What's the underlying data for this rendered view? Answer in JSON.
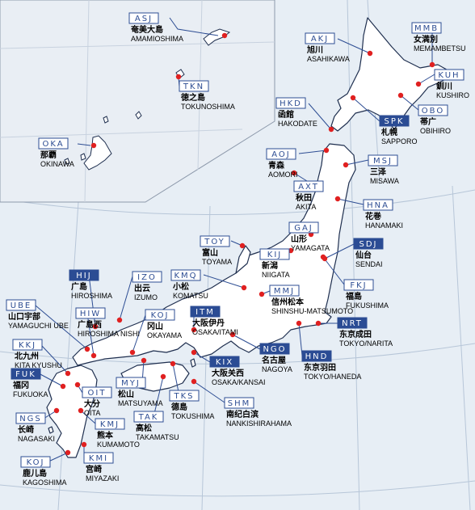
{
  "colors": {
    "sea": "#e7eef5",
    "land": "#ffffff",
    "coast": "#1f2f4f",
    "grid": "#b7c6d8",
    "line": "#2d4d93",
    "dot": "#e02020",
    "code_text": "#2d4d93",
    "code_fill_highlight": "#2b4c94",
    "inset_bg": "#e9eef4"
  },
  "airports": [
    {
      "code": "ASJ",
      "jp": "奄美大島",
      "en": "AMAMIOSHIMA",
      "highlight": false
    },
    {
      "code": "TKN",
      "jp": "徳之島",
      "en": "TOKUNOSHIMA",
      "highlight": false
    },
    {
      "code": "OKA",
      "jp": "那覇",
      "en": "OKINAWA",
      "highlight": false
    },
    {
      "code": "AKJ",
      "jp": "旭川",
      "en": "ASAHIKAWA",
      "highlight": false
    },
    {
      "code": "MMB",
      "jp": "女満別",
      "en": "MEMAMBETSU",
      "highlight": false
    },
    {
      "code": "KUH",
      "jp": "釧川",
      "en": "KUSHIRO",
      "highlight": false
    },
    {
      "code": "HKD",
      "jp": "函館",
      "en": "HAKODATE",
      "highlight": false
    },
    {
      "code": "SPK",
      "jp": "札幌",
      "en": "SAPPORO",
      "highlight": true
    },
    {
      "code": "OBO",
      "jp": "帯广",
      "en": "OBIHIRO",
      "highlight": false
    },
    {
      "code": "AOJ",
      "jp": "青森",
      "en": "AOMORI",
      "highlight": false
    },
    {
      "code": "MSJ",
      "jp": "三泽",
      "en": "MISAWA",
      "highlight": false
    },
    {
      "code": "AXT",
      "jp": "秋田",
      "en": "AKITA",
      "highlight": false
    },
    {
      "code": "HNA",
      "jp": "花巻",
      "en": "HANAMAKI",
      "highlight": false
    },
    {
      "code": "GAJ",
      "jp": "山形",
      "en": "YAMAGATA",
      "highlight": false
    },
    {
      "code": "TOY",
      "jp": "富山",
      "en": "TOYAMA",
      "highlight": false
    },
    {
      "code": "KIJ",
      "jp": "新潟",
      "en": "NIIGATA",
      "highlight": false
    },
    {
      "code": "SDJ",
      "jp": "仙台",
      "en": "SENDAI",
      "highlight": true
    },
    {
      "code": "KMQ",
      "jp": "小松",
      "en": "KOMATSU",
      "highlight": false
    },
    {
      "code": "MMJ",
      "jp": "信州松本",
      "en": "SHINSHU-MATSUMOTO",
      "highlight": false
    },
    {
      "code": "FKJ",
      "jp": "福島",
      "en": "FUKUSHIMA",
      "highlight": false
    },
    {
      "code": "HIJ",
      "jp": "广島",
      "en": "HIROSHIMA",
      "highlight": true
    },
    {
      "code": "IZO",
      "jp": "出云",
      "en": "IZUMO",
      "highlight": false
    },
    {
      "code": "ITM",
      "jp": "大阪伊丹",
      "en": "OSAKA/ITAMI",
      "highlight": true
    },
    {
      "code": "NRT",
      "jp": "东京成田",
      "en": "TOKYO/NARITA",
      "highlight": true
    },
    {
      "code": "UBE",
      "jp": "山口宇部",
      "en": "YAMAGUCHI UBE",
      "highlight": false
    },
    {
      "code": "HIW",
      "jp": "广島西",
      "en": "HIROSHIMA NISHI",
      "highlight": false
    },
    {
      "code": "KOJ",
      "jp": "冈山",
      "en": "OKAYAMA",
      "highlight": false
    },
    {
      "code": "NGO",
      "jp": "名古屋",
      "en": "NAGOYA",
      "highlight": true
    },
    {
      "code": "HND",
      "jp": "东京羽田",
      "en": "TOKYO/HANEDA",
      "highlight": true
    },
    {
      "code": "KKJ",
      "jp": "北九州",
      "en": "KITA KYUSHU",
      "highlight": false
    },
    {
      "code": "KIX",
      "jp": "大阪关西",
      "en": "OSAKA/KANSAI",
      "highlight": true
    },
    {
      "code": "FUK",
      "jp": "福冈",
      "en": "FUKUOKA",
      "highlight": true
    },
    {
      "code": "OIT",
      "jp": "大分",
      "en": "OITA",
      "highlight": false
    },
    {
      "code": "MYJ",
      "jp": "松山",
      "en": "MATSUYAMA",
      "highlight": false
    },
    {
      "code": "TKS",
      "jp": "德島",
      "en": "TOKUSHIMA",
      "highlight": false
    },
    {
      "code": "SHM",
      "jp": "南纪白滨",
      "en": "NANKISHIRAHAMA",
      "highlight": false
    },
    {
      "code": "NGS",
      "jp": "长崎",
      "en": "NAGASAKI",
      "highlight": false
    },
    {
      "code": "KMJ",
      "jp": "熊本",
      "en": "KUMAMOTO",
      "highlight": false
    },
    {
      "code": "TAK",
      "jp": "高松",
      "en": "TAKAMATSU",
      "highlight": false
    },
    {
      "code": "KOJ",
      "jp": "鹿儿島",
      "en": "KAGOSHIMA",
      "highlight": false
    },
    {
      "code": "KMI",
      "jp": "宫崎",
      "en": "MIYAZAKI",
      "highlight": false
    }
  ]
}
